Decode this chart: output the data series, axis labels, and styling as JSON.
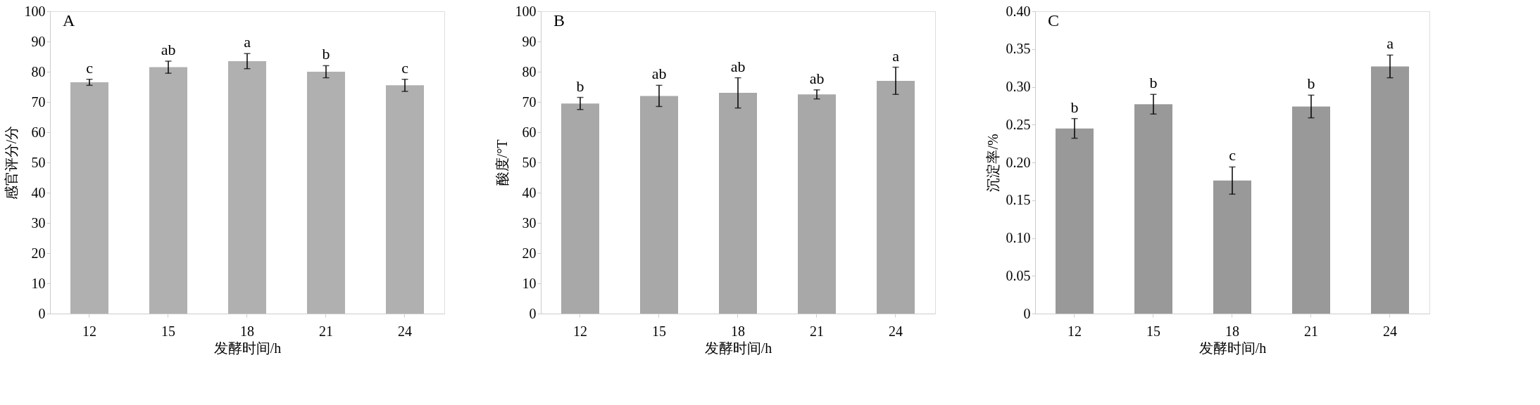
{
  "chart_data": [
    {
      "type": "bar",
      "title": "A",
      "xlabel": "发酵时间/h",
      "ylabel": "感官评分/分",
      "categories": [
        "12",
        "15",
        "18",
        "21",
        "24"
      ],
      "values": [
        76.5,
        81.5,
        83.5,
        80,
        75.5
      ],
      "errors": [
        1,
        2,
        2.5,
        2,
        2
      ],
      "color": "#b0b0b0",
      "ylim": [
        0,
        100
      ],
      "yticks": [
        0,
        10,
        20,
        30,
        40,
        50,
        60,
        70,
        80,
        90,
        100
      ],
      "grid": false,
      "annotations": [
        {
          "text": "c",
          "x": "12",
          "y": 77.5
        },
        {
          "text": "ab",
          "x": "15",
          "y": 83.5
        },
        {
          "text": "a",
          "x": "18",
          "y": 86
        },
        {
          "text": "b",
          "x": "21",
          "y": 82
        },
        {
          "text": "c",
          "x": "24",
          "y": 77.5
        }
      ]
    },
    {
      "type": "bar",
      "title": "B",
      "xlabel": "发酵时间/h",
      "ylabel": "酸度/°T",
      "categories": [
        "12",
        "15",
        "18",
        "21",
        "24"
      ],
      "values": [
        69.5,
        72,
        73,
        72.5,
        77
      ],
      "errors": [
        2,
        3.5,
        5,
        1.5,
        4.5
      ],
      "color": "#a8a8a8",
      "ylim": [
        0,
        100
      ],
      "yticks": [
        0,
        10,
        20,
        30,
        40,
        50,
        60,
        70,
        80,
        90,
        100
      ],
      "grid": false,
      "annotations": [
        {
          "text": "b",
          "x": "12",
          "y": 71.5
        },
        {
          "text": "ab",
          "x": "15",
          "y": 75.5
        },
        {
          "text": "ab",
          "x": "18",
          "y": 78
        },
        {
          "text": "ab",
          "x": "21",
          "y": 74
        },
        {
          "text": "a",
          "x": "24",
          "y": 81.5
        }
      ]
    },
    {
      "type": "bar",
      "title": "C",
      "xlabel": "发酵时间/h",
      "ylabel": "沉淀率/%",
      "categories": [
        "12",
        "15",
        "18",
        "21",
        "24"
      ],
      "values": [
        0.245,
        0.277,
        0.176,
        0.274,
        0.327
      ],
      "errors": [
        0.013,
        0.013,
        0.018,
        0.015,
        0.015
      ],
      "color": "#999999",
      "ylim": [
        0,
        0.4
      ],
      "yticks": [
        {
          "value": 0,
          "label": "0"
        },
        {
          "value": 0.05,
          "label": "0.05"
        },
        {
          "value": 0.1,
          "label": "0.10"
        },
        {
          "value": 0.15,
          "label": "0.15"
        },
        {
          "value": 0.2,
          "label": "0.20"
        },
        {
          "value": 0.25,
          "label": "0.25"
        },
        {
          "value": 0.3,
          "label": "0.30"
        },
        {
          "value": 0.35,
          "label": "0.35"
        },
        {
          "value": 0.4,
          "label": "0.40"
        }
      ],
      "grid": false,
      "annotations": [
        {
          "text": "b",
          "x": "12",
          "y": 0.258
        },
        {
          "text": "b",
          "x": "15",
          "y": 0.29
        },
        {
          "text": "c",
          "x": "18",
          "y": 0.194
        },
        {
          "text": "b",
          "x": "21",
          "y": 0.289
        },
        {
          "text": "a",
          "x": "24",
          "y": 0.342
        }
      ]
    }
  ]
}
